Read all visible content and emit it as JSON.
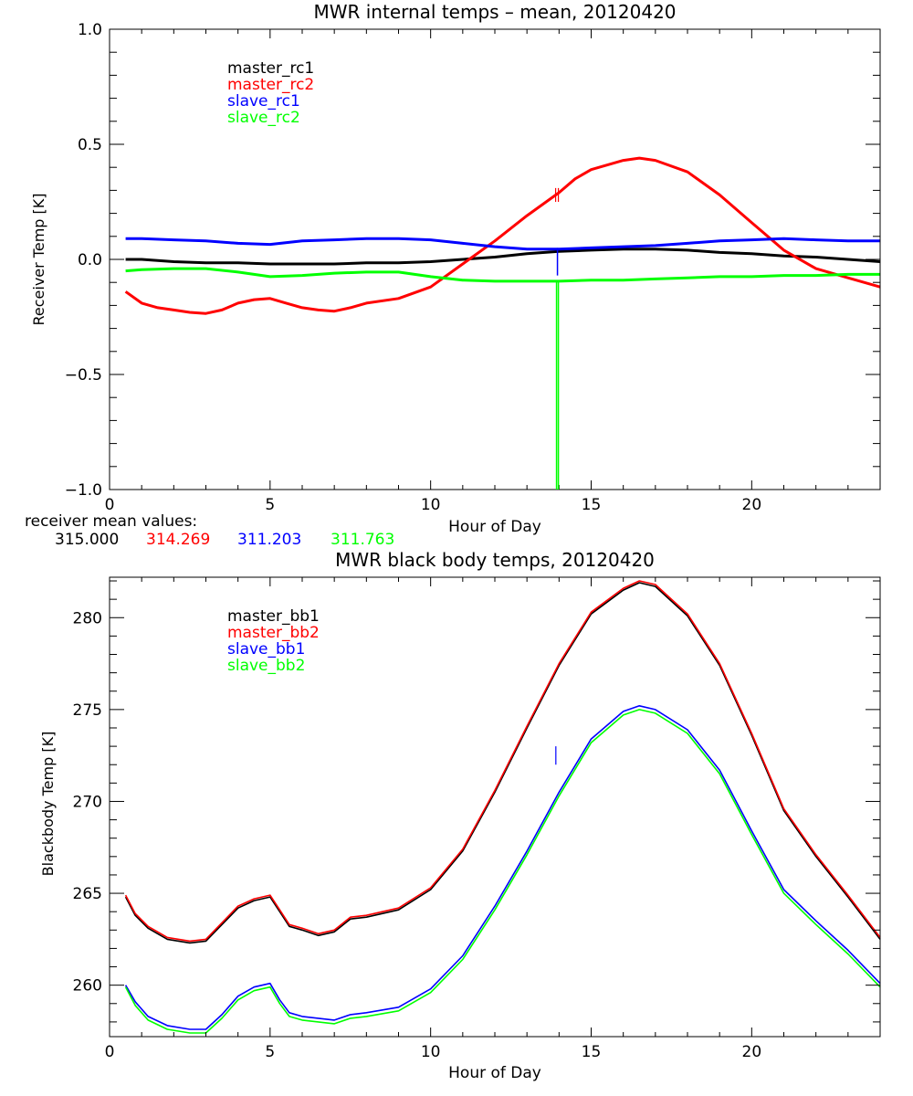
{
  "chart_data": [
    {
      "type": "line",
      "title": "MWR internal temps – mean, 20120420",
      "xlabel": "Hour of Day",
      "ylabel": "Receiver Temp [K]",
      "xlim": [
        0,
        24
      ],
      "ylim": [
        -1.0,
        1.0
      ],
      "xticks": [
        0,
        5,
        10,
        15,
        20
      ],
      "xtick_labels": [
        "0",
        "5",
        "10",
        "15",
        "20"
      ],
      "yticks": [
        -1.0,
        -0.5,
        0.0,
        0.5,
        1.0
      ],
      "ytick_labels": [
        "−1.0",
        "−0.5",
        "0.0",
        "0.5",
        "1.0"
      ],
      "grid": false,
      "legend_position": "top-left",
      "series": [
        {
          "name": "master_rc1",
          "color": "#000000",
          "x": [
            0.5,
            1,
            2,
            3,
            4,
            5,
            6,
            7,
            8,
            9,
            10,
            11,
            12,
            13,
            14,
            15,
            16,
            17,
            18,
            19,
            20,
            21,
            22,
            23,
            24
          ],
          "y": [
            0.0,
            0.0,
            -0.01,
            -0.015,
            -0.015,
            -0.02,
            -0.02,
            -0.02,
            -0.015,
            -0.015,
            -0.01,
            0.0,
            0.01,
            0.025,
            0.035,
            0.04,
            0.045,
            0.045,
            0.04,
            0.03,
            0.025,
            0.015,
            0.01,
            0.0,
            -0.01
          ]
        },
        {
          "name": "master_rc2",
          "color": "#ff0000",
          "x": [
            0.5,
            1,
            1.5,
            2,
            2.5,
            3,
            3.5,
            4,
            4.5,
            5,
            5.5,
            6,
            6.5,
            7,
            7.5,
            8,
            9,
            10,
            11,
            12,
            13,
            14,
            14.5,
            15,
            16,
            16.5,
            17,
            18,
            19,
            20,
            21,
            22,
            23,
            24
          ],
          "y": [
            -0.14,
            -0.19,
            -0.21,
            -0.22,
            -0.23,
            -0.235,
            -0.22,
            -0.19,
            -0.175,
            -0.17,
            -0.19,
            -0.21,
            -0.22,
            -0.225,
            -0.21,
            -0.19,
            -0.17,
            -0.12,
            -0.02,
            0.08,
            0.19,
            0.29,
            0.35,
            0.39,
            0.43,
            0.44,
            0.43,
            0.38,
            0.28,
            0.16,
            0.04,
            -0.04,
            -0.08,
            -0.12
          ]
        },
        {
          "name": "slave_rc1",
          "color": "#0000ff",
          "x": [
            0.5,
            1,
            2,
            3,
            4,
            5,
            6,
            7,
            8,
            9,
            10,
            11,
            12,
            13,
            14,
            15,
            16,
            17,
            18,
            19,
            20,
            21,
            22,
            23,
            24
          ],
          "y": [
            0.09,
            0.09,
            0.085,
            0.08,
            0.07,
            0.065,
            0.08,
            0.085,
            0.09,
            0.09,
            0.085,
            0.07,
            0.055,
            0.045,
            0.045,
            0.05,
            0.055,
            0.06,
            0.07,
            0.08,
            0.085,
            0.09,
            0.085,
            0.08,
            0.08
          ]
        },
        {
          "name": "slave_rc2",
          "color": "#00ff00",
          "x": [
            0.5,
            1,
            2,
            3,
            4,
            5,
            6,
            7,
            8,
            9,
            10,
            11,
            12,
            13,
            14,
            15,
            16,
            17,
            18,
            19,
            20,
            21,
            22,
            23,
            24
          ],
          "y": [
            -0.05,
            -0.045,
            -0.04,
            -0.04,
            -0.055,
            -0.075,
            -0.07,
            -0.06,
            -0.055,
            -0.055,
            -0.075,
            -0.09,
            -0.095,
            -0.095,
            -0.095,
            -0.09,
            -0.09,
            -0.085,
            -0.08,
            -0.075,
            -0.075,
            -0.07,
            -0.07,
            -0.065,
            -0.065
          ]
        }
      ],
      "annotation_label": "receiver mean values:",
      "mean_values": [
        {
          "value": "315.000",
          "color": "#000000"
        },
        {
          "value": "314.269",
          "color": "#ff0000"
        },
        {
          "value": "311.203",
          "color": "#0000ff"
        },
        {
          "value": "311.763",
          "color": "#00ff00"
        }
      ]
    },
    {
      "type": "line",
      "title": "MWR black body temps, 20120420",
      "xlabel": "Hour of Day",
      "ylabel": "Blackbody Temp [K]",
      "xlim": [
        0,
        24
      ],
      "ylim": [
        257.2,
        282.2
      ],
      "xticks": [
        0,
        5,
        10,
        15,
        20
      ],
      "xtick_labels": [
        "0",
        "5",
        "10",
        "15",
        "20"
      ],
      "yticks": [
        260,
        265,
        270,
        275,
        280
      ],
      "ytick_labels": [
        "260",
        "265",
        "270",
        "275",
        "280"
      ],
      "grid": false,
      "legend_position": "top-left",
      "series": [
        {
          "name": "master_bb1",
          "color": "#000000",
          "x": [
            0.5,
            0.8,
            1.2,
            1.8,
            2.5,
            3.0,
            3.5,
            4.0,
            4.5,
            5.0,
            5.3,
            5.6,
            6.0,
            6.5,
            7.0,
            7.5,
            8.0,
            9.0,
            10.0,
            11.0,
            12.0,
            13.0,
            14.0,
            15.0,
            16.0,
            16.5,
            17.0,
            18.0,
            19.0,
            20.0,
            21.0,
            22.0,
            23.0,
            24.0
          ],
          "y": [
            264.8,
            263.8,
            263.1,
            262.5,
            262.3,
            262.4,
            263.3,
            264.2,
            264.6,
            264.8,
            264.0,
            263.2,
            263.0,
            262.7,
            262.9,
            263.6,
            263.7,
            264.1,
            265.2,
            267.3,
            270.5,
            274.0,
            277.4,
            280.2,
            281.5,
            281.9,
            281.7,
            280.1,
            277.4,
            273.6,
            269.5,
            267.0,
            264.8,
            262.5
          ]
        },
        {
          "name": "master_bb2",
          "color": "#ff0000",
          "x": [
            0.5,
            0.8,
            1.2,
            1.8,
            2.5,
            3.0,
            3.5,
            4.0,
            4.5,
            5.0,
            5.3,
            5.6,
            6.0,
            6.5,
            7.0,
            7.5,
            8.0,
            9.0,
            10.0,
            11.0,
            12.0,
            13.0,
            14.0,
            15.0,
            16.0,
            16.5,
            17.0,
            18.0,
            19.0,
            20.0,
            21.0,
            22.0,
            23.0,
            24.0
          ],
          "y": [
            264.9,
            263.9,
            263.2,
            262.6,
            262.4,
            262.5,
            263.4,
            264.3,
            264.7,
            264.9,
            264.1,
            263.3,
            263.1,
            262.8,
            263.0,
            263.7,
            263.8,
            264.2,
            265.3,
            267.4,
            270.6,
            274.1,
            277.5,
            280.3,
            281.6,
            282.0,
            281.8,
            280.2,
            277.5,
            273.7,
            269.6,
            267.1,
            264.9,
            262.6
          ]
        },
        {
          "name": "slave_bb1",
          "color": "#0000ff",
          "x": [
            0.5,
            0.8,
            1.2,
            1.8,
            2.5,
            3.0,
            3.5,
            4.0,
            4.5,
            5.0,
            5.3,
            5.6,
            6.0,
            6.5,
            7.0,
            7.5,
            8.0,
            9.0,
            10.0,
            11.0,
            12.0,
            13.0,
            14.0,
            15.0,
            16.0,
            16.5,
            17.0,
            18.0,
            19.0,
            20.0,
            21.0,
            22.0,
            23.0,
            24.0
          ],
          "y": [
            260.0,
            259.1,
            258.3,
            257.8,
            257.6,
            257.6,
            258.4,
            259.4,
            259.9,
            260.1,
            259.2,
            258.5,
            258.3,
            258.2,
            258.1,
            258.4,
            258.5,
            258.8,
            259.8,
            261.6,
            264.3,
            267.3,
            270.5,
            273.4,
            274.9,
            275.2,
            275.0,
            273.9,
            271.7,
            268.4,
            265.2,
            263.5,
            261.9,
            260.1
          ]
        },
        {
          "name": "slave_bb2",
          "color": "#00ff00",
          "x": [
            0.5,
            0.8,
            1.2,
            1.8,
            2.5,
            3.0,
            3.5,
            4.0,
            4.5,
            5.0,
            5.3,
            5.6,
            6.0,
            6.5,
            7.0,
            7.5,
            8.0,
            9.0,
            10.0,
            11.0,
            12.0,
            13.0,
            14.0,
            15.0,
            16.0,
            16.5,
            17.0,
            18.0,
            19.0,
            20.0,
            21.0,
            22.0,
            23.0,
            24.0
          ],
          "y": [
            259.9,
            258.9,
            258.1,
            257.6,
            257.4,
            257.4,
            258.2,
            259.2,
            259.7,
            259.9,
            259.0,
            258.3,
            258.1,
            258.0,
            257.9,
            258.2,
            258.3,
            258.6,
            259.6,
            261.4,
            264.1,
            267.1,
            270.3,
            273.2,
            274.7,
            275.0,
            274.8,
            273.7,
            271.5,
            268.2,
            265.0,
            263.3,
            261.7,
            259.9
          ]
        }
      ]
    }
  ]
}
